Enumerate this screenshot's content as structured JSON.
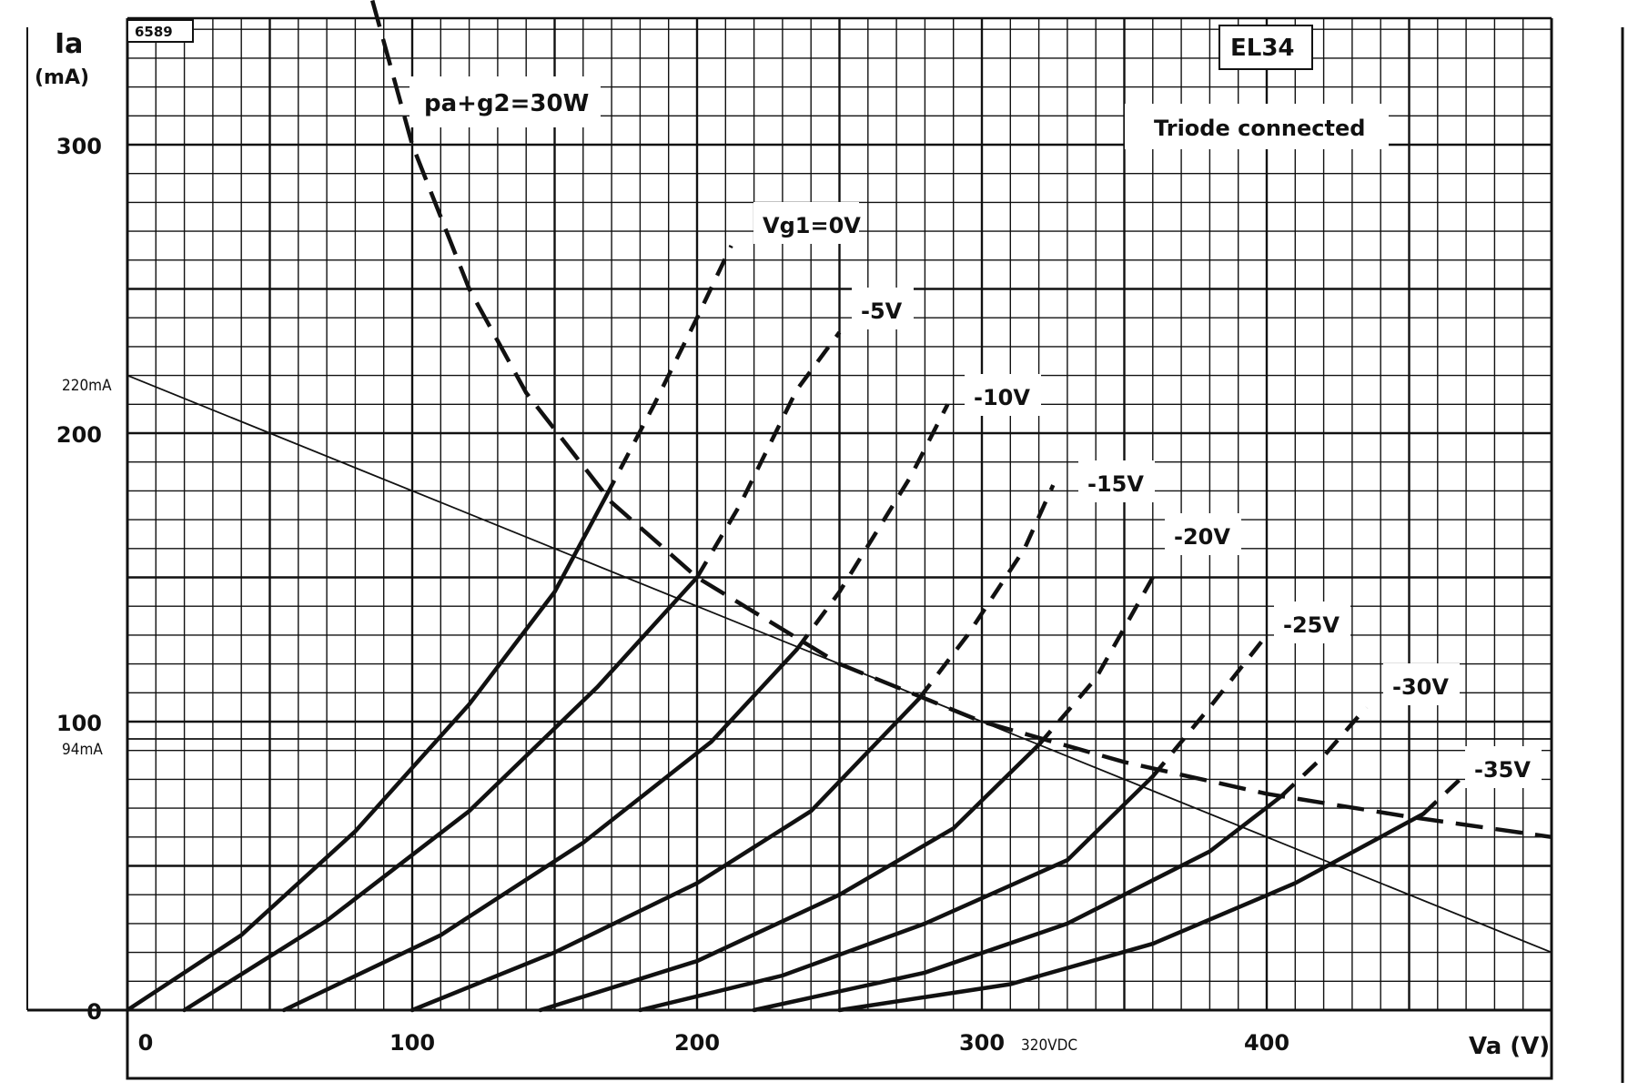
{
  "chart_data": {
    "type": "line",
    "ref_code": "6589",
    "tube": "EL34",
    "mode": "Triode connected",
    "ylabel": "Ia",
    "yunit": "(mA)",
    "xlabel": "Va (V)",
    "xlim": [
      0,
      500
    ],
    "ylim": [
      0,
      350
    ],
    "xticks": [
      0,
      100,
      200,
      300,
      400
    ],
    "yticks": [
      0,
      100,
      200,
      300
    ],
    "grid": true,
    "dissipation": {
      "label": "pa+g2=30W",
      "points": [
        [
          86,
          350
        ],
        [
          100,
          300
        ],
        [
          120,
          250
        ],
        [
          140,
          214
        ],
        [
          170,
          176
        ],
        [
          200,
          150
        ],
        [
          250,
          120
        ],
        [
          300,
          100
        ],
        [
          350,
          86
        ],
        [
          400,
          75
        ],
        [
          450,
          67
        ],
        [
          500,
          60
        ]
      ]
    },
    "series": [
      {
        "name": "Vg1=0V",
        "label": "Vg1=0V",
        "solid": [
          [
            0,
            0
          ],
          [
            40,
            26
          ],
          [
            80,
            62
          ],
          [
            120,
            106
          ],
          [
            150,
            145
          ],
          [
            168,
            178
          ]
        ],
        "dashed": [
          [
            168,
            178
          ],
          [
            185,
            210
          ],
          [
            200,
            240
          ],
          [
            212,
            265
          ]
        ]
      },
      {
        "name": "-5V",
        "label": "-5V",
        "solid": [
          [
            20,
            0
          ],
          [
            70,
            31
          ],
          [
            120,
            69
          ],
          [
            165,
            112
          ],
          [
            200,
            150
          ]
        ],
        "dashed": [
          [
            200,
            150
          ],
          [
            215,
            175
          ],
          [
            235,
            215
          ],
          [
            250,
            235
          ]
        ]
      },
      {
        "name": "-10V",
        "label": "-10V",
        "solid": [
          [
            55,
            0
          ],
          [
            110,
            26
          ],
          [
            160,
            58
          ],
          [
            205,
            93
          ],
          [
            235,
            125
          ]
        ],
        "dashed": [
          [
            235,
            125
          ],
          [
            250,
            145
          ],
          [
            275,
            185
          ],
          [
            288,
            210
          ]
        ]
      },
      {
        "name": "-15V",
        "label": "-15V",
        "solid": [
          [
            100,
            0
          ],
          [
            150,
            20
          ],
          [
            200,
            44
          ],
          [
            240,
            69
          ],
          [
            278,
            108
          ]
        ],
        "dashed": [
          [
            278,
            108
          ],
          [
            295,
            130
          ],
          [
            315,
            160
          ],
          [
            325,
            182
          ]
        ]
      },
      {
        "name": "-20V",
        "label": "-20V",
        "solid": [
          [
            145,
            0
          ],
          [
            200,
            17
          ],
          [
            250,
            40
          ],
          [
            290,
            63
          ],
          [
            320,
            92
          ]
        ],
        "dashed": [
          [
            320,
            92
          ],
          [
            340,
            115
          ],
          [
            360,
            150
          ]
        ]
      },
      {
        "name": "-25V",
        "label": "-25V",
        "solid": [
          [
            180,
            0
          ],
          [
            230,
            12
          ],
          [
            280,
            30
          ],
          [
            330,
            52
          ],
          [
            360,
            81
          ]
        ],
        "dashed": [
          [
            360,
            81
          ],
          [
            380,
            105
          ],
          [
            400,
            130
          ]
        ]
      },
      {
        "name": "-30V",
        "label": "-30V",
        "solid": [
          [
            220,
            0
          ],
          [
            280,
            13
          ],
          [
            330,
            30
          ],
          [
            380,
            55
          ],
          [
            405,
            74
          ]
        ],
        "dashed": [
          [
            405,
            74
          ],
          [
            420,
            88
          ],
          [
            435,
            105
          ]
        ]
      },
      {
        "name": "-35V",
        "label": "-35V",
        "solid": [
          [
            250,
            0
          ],
          [
            310,
            9
          ],
          [
            360,
            23
          ],
          [
            410,
            44
          ],
          [
            455,
            68
          ]
        ],
        "dashed": [
          [
            455,
            68
          ],
          [
            470,
            82
          ]
        ]
      }
    ],
    "load_line": {
      "points": [
        [
          0,
          220
        ],
        [
          500,
          20
        ]
      ]
    },
    "annotations": {
      "mA_220": "220mA",
      "mA_94": "94mA",
      "vdc_320": "320VDC"
    },
    "reference_line": {
      "y": 94
    }
  }
}
